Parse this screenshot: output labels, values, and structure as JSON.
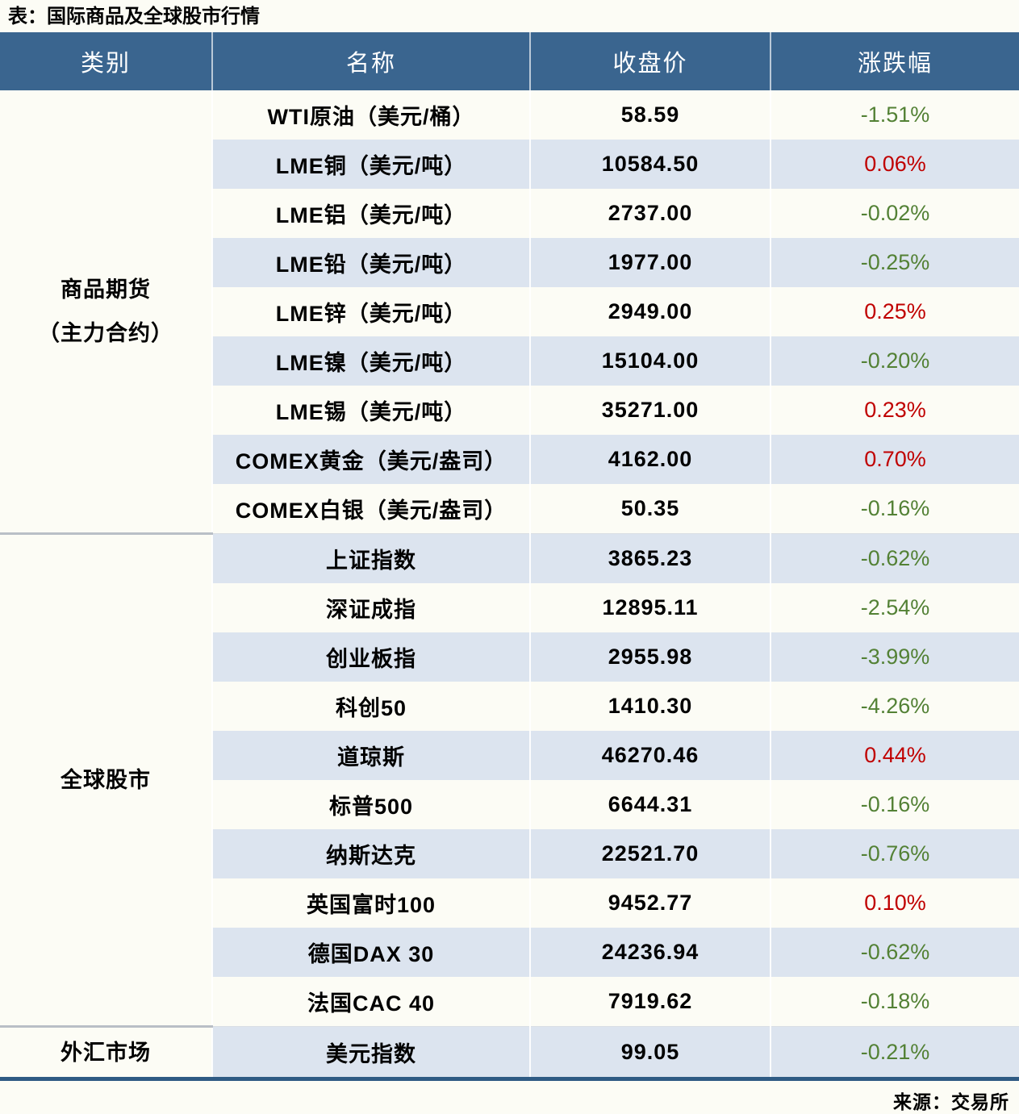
{
  "title": "表：国际商品及全球股市行情",
  "source": "来源：交易所",
  "colors": {
    "header_bg": "#3a658f",
    "stripe_row_bg": "#dce4ef",
    "positive_change": "#c00000",
    "negative_change": "#538135",
    "bottom_bar": "#2f5b84"
  },
  "chart_data": {
    "type": "table",
    "columns": [
      "类别",
      "名称",
      "收盘价",
      "涨跌幅"
    ],
    "sections": [
      {
        "category_lines": [
          "商品期货",
          "（主力合约）"
        ],
        "rows": [
          {
            "name": "WTI原油（美元/桶）",
            "close": "58.59",
            "change": "-1.51%",
            "dir": "down"
          },
          {
            "name": "LME铜（美元/吨）",
            "close": "10584.50",
            "change": "0.06%",
            "dir": "up"
          },
          {
            "name": "LME铝（美元/吨）",
            "close": "2737.00",
            "change": "-0.02%",
            "dir": "down"
          },
          {
            "name": "LME铅（美元/吨）",
            "close": "1977.00",
            "change": "-0.25%",
            "dir": "down"
          },
          {
            "name": "LME锌（美元/吨）",
            "close": "2949.00",
            "change": "0.25%",
            "dir": "up"
          },
          {
            "name": "LME镍（美元/吨）",
            "close": "15104.00",
            "change": "-0.20%",
            "dir": "down"
          },
          {
            "name": "LME锡（美元/吨）",
            "close": "35271.00",
            "change": "0.23%",
            "dir": "up"
          },
          {
            "name": "COMEX黄金（美元/盎司）",
            "close": "4162.00",
            "change": "0.70%",
            "dir": "up"
          },
          {
            "name": "COMEX白银（美元/盎司）",
            "close": "50.35",
            "change": "-0.16%",
            "dir": "down"
          }
        ]
      },
      {
        "category_lines": [
          "全球股市"
        ],
        "rows": [
          {
            "name": "上证指数",
            "close": "3865.23",
            "change": "-0.62%",
            "dir": "down"
          },
          {
            "name": "深证成指",
            "close": "12895.11",
            "change": "-2.54%",
            "dir": "down"
          },
          {
            "name": "创业板指",
            "close": "2955.98",
            "change": "-3.99%",
            "dir": "down"
          },
          {
            "name": "科创50",
            "close": "1410.30",
            "change": "-4.26%",
            "dir": "down"
          },
          {
            "name": "道琼斯",
            "close": "46270.46",
            "change": "0.44%",
            "dir": "up"
          },
          {
            "name": "标普500",
            "close": "6644.31",
            "change": "-0.16%",
            "dir": "down"
          },
          {
            "name": "纳斯达克",
            "close": "22521.70",
            "change": "-0.76%",
            "dir": "down"
          },
          {
            "name": "英国富时100",
            "close": "9452.77",
            "change": "0.10%",
            "dir": "up"
          },
          {
            "name": "德国DAX 30",
            "close": "24236.94",
            "change": "-0.62%",
            "dir": "down"
          },
          {
            "name": "法国CAC 40",
            "close": "7919.62",
            "change": "-0.18%",
            "dir": "down"
          }
        ]
      },
      {
        "category_lines": [
          "外汇市场"
        ],
        "rows": [
          {
            "name": "美元指数",
            "close": "99.05",
            "change": "-0.21%",
            "dir": "down"
          }
        ]
      }
    ]
  }
}
